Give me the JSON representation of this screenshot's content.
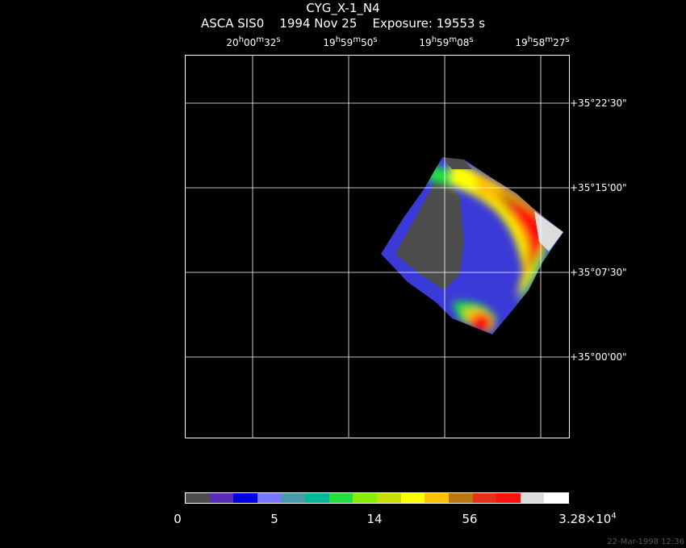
{
  "header": {
    "object": "CYG_X-1_N4",
    "subtitle": "ASCA SIS0    1994 Nov 25    Exposure: 19553 s"
  },
  "chart_data": {
    "type": "heatmap",
    "ra_ticks": [
      {
        "h": "20",
        "m": "00",
        "s": "32"
      },
      {
        "h": "19",
        "m": "59",
        "s": "50"
      },
      {
        "h": "19",
        "m": "59",
        "s": "08"
      },
      {
        "h": "19",
        "m": "58",
        "s": "27"
      }
    ],
    "dec_ticks": [
      "+35°22'30\"",
      "+35°15'00\"",
      "+35°07'30\"",
      "+35°00'00\""
    ],
    "colorbar": {
      "labels": [
        "0",
        "5",
        "14",
        "56"
      ],
      "max_label_base": "3.28×10",
      "max_label_exp": "4",
      "colors": [
        "#4d4d4d",
        "#5a2db8",
        "#0000e0",
        "#7777ff",
        "#4a9aa8",
        "#00b89a",
        "#22e040",
        "#88ee00",
        "#c8e000",
        "#ffff00",
        "#ffc000",
        "#b87810",
        "#e83018",
        "#ff1010",
        "#dcdcdc",
        "#ffffff"
      ]
    }
  },
  "footer": {
    "timestamp": "22-Mar-1998 12:36"
  }
}
